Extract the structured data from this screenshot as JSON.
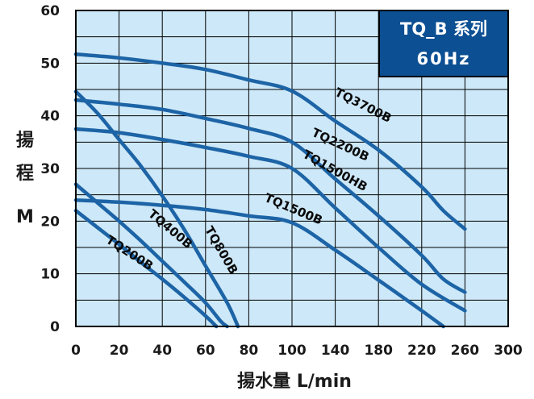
{
  "chart_data": {
    "type": "line",
    "title": "TQ_B 系列",
    "subtitle": "60Hz",
    "xlabel": "揚水量 L/min",
    "ylabel_chars": [
      "揚",
      "程"
    ],
    "ylabel_unit": "M",
    "y_ticks": [
      "0",
      "10",
      "20",
      "30",
      "40",
      "50",
      "60"
    ],
    "x_ticks": [
      "0",
      "20",
      "40",
      "60",
      "80",
      "100",
      "140",
      "180",
      "220",
      "260",
      "300"
    ],
    "ylim": [
      0,
      60
    ],
    "grid": true,
    "legend_placement": "top-right",
    "series": [
      {
        "name": "TQ3700B",
        "points": [
          [
            0,
            51.7
          ],
          [
            20,
            51.0
          ],
          [
            40,
            50.0
          ],
          [
            60,
            48.8
          ],
          [
            80,
            46.8
          ],
          [
            100,
            44.7
          ],
          [
            140,
            39.0
          ],
          [
            180,
            33.5
          ],
          [
            220,
            26.5
          ],
          [
            240,
            22.0
          ],
          [
            260,
            18.5
          ]
        ]
      },
      {
        "name": "TQ2200B",
        "points": [
          [
            0,
            43.0
          ],
          [
            20,
            42.2
          ],
          [
            40,
            41.2
          ],
          [
            60,
            39.5
          ],
          [
            80,
            37.6
          ],
          [
            100,
            35.0
          ],
          [
            140,
            28.0
          ],
          [
            180,
            21.0
          ],
          [
            220,
            13.5
          ],
          [
            240,
            9.0
          ],
          [
            260,
            6.5
          ]
        ]
      },
      {
        "name": "TQ1500HB",
        "points": [
          [
            0,
            37.5
          ],
          [
            20,
            36.8
          ],
          [
            40,
            35.5
          ],
          [
            60,
            34.0
          ],
          [
            80,
            32.3
          ],
          [
            100,
            30.0
          ],
          [
            140,
            22.5
          ],
          [
            180,
            15.0
          ],
          [
            220,
            8.0
          ],
          [
            260,
            3.0
          ]
        ]
      },
      {
        "name": "TQ1500B",
        "points": [
          [
            0,
            24.0
          ],
          [
            20,
            23.6
          ],
          [
            40,
            23.0
          ],
          [
            60,
            22.2
          ],
          [
            80,
            21.0
          ],
          [
            100,
            19.7
          ],
          [
            140,
            14.5
          ],
          [
            180,
            8.8
          ],
          [
            220,
            3.0
          ],
          [
            240,
            0.0
          ]
        ]
      },
      {
        "name": "TQ800B",
        "points": [
          [
            0,
            44.6
          ],
          [
            10,
            40.5
          ],
          [
            20,
            35.5
          ],
          [
            30,
            30.5
          ],
          [
            40,
            24.8
          ],
          [
            50,
            18.5
          ],
          [
            60,
            11.5
          ],
          [
            70,
            4.5
          ],
          [
            75,
            0.0
          ]
        ]
      },
      {
        "name": "TQ400B",
        "points": [
          [
            0,
            27.0
          ],
          [
            10,
            23.5
          ],
          [
            20,
            20.0
          ],
          [
            30,
            16.3
          ],
          [
            40,
            12.4
          ],
          [
            50,
            8.5
          ],
          [
            60,
            4.5
          ],
          [
            67,
            1.0
          ],
          [
            70,
            0.0
          ]
        ]
      },
      {
        "name": "TQ200B",
        "points": [
          [
            0,
            22.0
          ],
          [
            10,
            18.8
          ],
          [
            20,
            15.6
          ],
          [
            30,
            12.2
          ],
          [
            40,
            9.0
          ],
          [
            50,
            5.6
          ],
          [
            60,
            2.0
          ],
          [
            65,
            0.0
          ]
        ]
      }
    ],
    "colors": {
      "plot_background": "#cde8f8",
      "gridline": "#000000",
      "curve": "#1d64a6",
      "legend_background": "#0c4f93"
    }
  }
}
